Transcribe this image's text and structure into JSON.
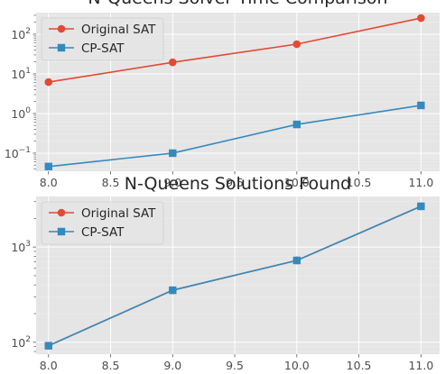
{
  "chart_data": [
    {
      "type": "line",
      "title": "N-Queens Solver Time Comparison",
      "xlabel": "",
      "ylabel": "",
      "x": [
        8,
        9,
        10,
        11
      ],
      "xlim": [
        7.9,
        11.15
      ],
      "ylim": [
        0.035,
        350
      ],
      "yscale": "log",
      "x_ticks": [
        "8.0",
        "8.5",
        "9.0",
        "9.5",
        "10.0",
        "10.5",
        "11.0"
      ],
      "y_ticks": [
        "10^-1",
        "10^0",
        "10^1",
        "10^2"
      ],
      "grid": true,
      "legend": "upper left",
      "series": [
        {
          "name": "Original SAT",
          "color": "#e24a33",
          "marker": "circle",
          "values": [
            6.2,
            19.5,
            56,
            255
          ]
        },
        {
          "name": "CP-SAT",
          "color": "#348abd",
          "marker": "square",
          "values": [
            0.046,
            0.1,
            0.53,
            1.6
          ]
        }
      ]
    },
    {
      "type": "line",
      "title": "N-Queens Solutions Found",
      "xlabel": "",
      "ylabel": "",
      "x": [
        8,
        9,
        10,
        11
      ],
      "xlim": [
        7.9,
        11.15
      ],
      "ylim": [
        75,
        3400
      ],
      "yscale": "log",
      "x_ticks": [
        "8.0",
        "8.5",
        "9.0",
        "9.5",
        "10.0",
        "10.5",
        "11.0"
      ],
      "y_ticks": [
        "10^2",
        "10^3"
      ],
      "grid": true,
      "legend": "upper left",
      "series": [
        {
          "name": "Original SAT",
          "color": "#e24a33",
          "marker": "circle",
          "values": [
            92,
            352,
            724,
            2680
          ]
        },
        {
          "name": "CP-SAT",
          "color": "#348abd",
          "marker": "square",
          "values": [
            92,
            352,
            724,
            2680
          ]
        }
      ]
    }
  ]
}
